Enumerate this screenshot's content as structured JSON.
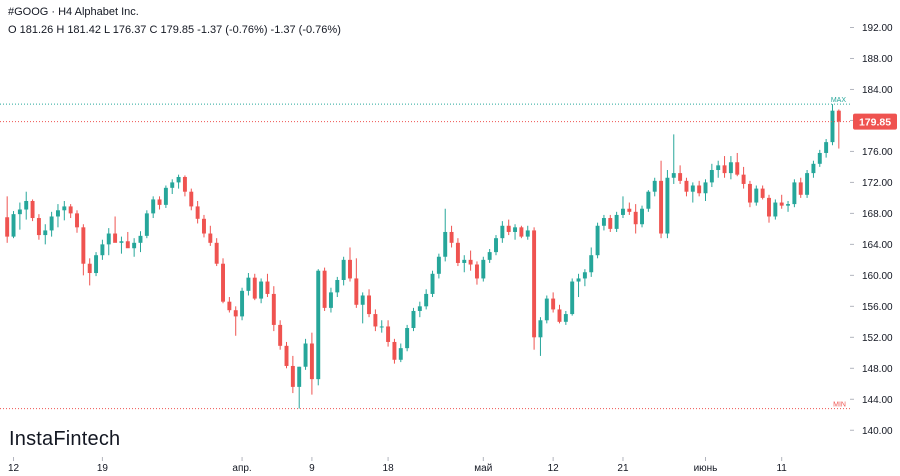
{
  "header": {
    "title": "#GOOG · H4 Alphabet Inc.",
    "ohlc": "O 181.26 H 181.42 L 176.37 C 179.85 -1.37 (-0.76%) -1.37 (-0.76%)"
  },
  "logo": "InstaFintech",
  "colors": {
    "up": "#26a69a",
    "down": "#ef5350",
    "price_line": "#ef5350",
    "max_line": "#26a69a",
    "min_line": "#ef5350",
    "axis_text": "#131722"
  },
  "chart_data": {
    "type": "candlestick",
    "title": "#GOOG · H4 Alphabet Inc.",
    "ylim": [
      139,
      194
    ],
    "y_ticks": [
      140,
      144,
      148,
      152,
      156,
      160,
      164,
      168,
      172,
      176,
      180,
      184,
      188,
      192
    ],
    "y_tick_labels": [
      "140.00",
      "144.00",
      "148.00",
      "152.00",
      "156.00",
      "160.00",
      "164.00",
      "168.00",
      "172.00",
      "176.00",
      "180.00",
      "184.00",
      "188.00",
      "192.00"
    ],
    "x_ticks": [
      {
        "label": "12",
        "index": 1
      },
      {
        "label": "19",
        "index": 15
      },
      {
        "label": "апр.",
        "index": 37
      },
      {
        "label": "9",
        "index": 48
      },
      {
        "label": "18",
        "index": 60
      },
      {
        "label": "май",
        "index": 75
      },
      {
        "label": "12",
        "index": 86
      },
      {
        "label": "21",
        "index": 97
      },
      {
        "label": "июнь",
        "index": 110
      },
      {
        "label": "11",
        "index": 122
      }
    ],
    "max": {
      "label": "MAX",
      "value": 182.1
    },
    "min": {
      "label": "MIN",
      "value": 142.8
    },
    "last_price": {
      "label": "179.85",
      "value": 179.85
    },
    "ohlc": [
      [
        167.5,
        170.2,
        164.2,
        165.0
      ],
      [
        165.0,
        168.3,
        164.8,
        167.9
      ],
      [
        167.9,
        169.4,
        165.9,
        168.5
      ],
      [
        168.5,
        170.8,
        167.2,
        169.6
      ],
      [
        169.6,
        169.8,
        167.0,
        167.4
      ],
      [
        167.4,
        167.9,
        164.6,
        165.2
      ],
      [
        165.2,
        166.6,
        164.0,
        165.8
      ],
      [
        165.8,
        168.2,
        165.0,
        167.6
      ],
      [
        167.6,
        169.2,
        166.2,
        168.4
      ],
      [
        168.4,
        169.6,
        167.1,
        168.9
      ],
      [
        168.9,
        169.2,
        167.4,
        168.0
      ],
      [
        168.0,
        168.4,
        165.5,
        166.2
      ],
      [
        166.2,
        166.6,
        160.0,
        161.5
      ],
      [
        161.5,
        162.2,
        158.7,
        160.3
      ],
      [
        160.3,
        163.0,
        159.9,
        162.6
      ],
      [
        162.6,
        164.6,
        162.0,
        164.0
      ],
      [
        164.0,
        166.1,
        162.6,
        165.4
      ],
      [
        165.4,
        167.6,
        164.6,
        164.2
      ],
      [
        164.2,
        165.0,
        162.8,
        164.4
      ],
      [
        164.4,
        165.6,
        163.8,
        163.5
      ],
      [
        163.5,
        164.8,
        162.4,
        164.2
      ],
      [
        164.2,
        165.7,
        163.0,
        165.1
      ],
      [
        165.1,
        168.4,
        164.8,
        168.0
      ],
      [
        168.0,
        170.2,
        167.4,
        169.8
      ],
      [
        169.8,
        170.2,
        168.5,
        169.1
      ],
      [
        169.1,
        171.6,
        168.7,
        171.3
      ],
      [
        171.3,
        172.4,
        170.5,
        172.0
      ],
      [
        172.0,
        173.0,
        171.2,
        172.7
      ],
      [
        172.7,
        172.9,
        170.2,
        170.8
      ],
      [
        170.8,
        171.2,
        168.4,
        168.9
      ],
      [
        168.9,
        169.6,
        166.7,
        167.3
      ],
      [
        167.3,
        167.8,
        164.9,
        165.4
      ],
      [
        165.4,
        166.4,
        163.8,
        164.2
      ],
      [
        164.2,
        164.8,
        161.2,
        161.5
      ],
      [
        161.5,
        162.2,
        156.4,
        156.6
      ],
      [
        156.6,
        157.2,
        155.2,
        155.5
      ],
      [
        155.5,
        156.0,
        152.2,
        154.7
      ],
      [
        154.7,
        158.4,
        154.2,
        158.0
      ],
      [
        158.0,
        160.3,
        157.4,
        159.7
      ],
      [
        159.7,
        160.2,
        156.8,
        157.0
      ],
      [
        157.0,
        159.6,
        156.4,
        159.2
      ],
      [
        159.2,
        160.2,
        157.2,
        157.6
      ],
      [
        157.6,
        158.6,
        152.8,
        153.6
      ],
      [
        153.6,
        154.2,
        150.4,
        150.9
      ],
      [
        150.9,
        151.4,
        148.0,
        148.3
      ],
      [
        148.3,
        149.6,
        144.8,
        145.6
      ],
      [
        145.6,
        148.2,
        142.8,
        148.2
      ],
      [
        148.2,
        151.8,
        147.8,
        151.2
      ],
      [
        151.2,
        152.6,
        144.6,
        146.6
      ],
      [
        146.6,
        160.8,
        145.8,
        160.6
      ],
      [
        160.6,
        161.0,
        155.4,
        155.8
      ],
      [
        155.8,
        158.4,
        155.2,
        157.8
      ],
      [
        157.8,
        159.8,
        157.2,
        159.4
      ],
      [
        159.4,
        162.4,
        158.7,
        162.0
      ],
      [
        162.0,
        163.6,
        159.2,
        159.6
      ],
      [
        159.6,
        162.2,
        155.8,
        156.2
      ],
      [
        156.2,
        157.8,
        153.8,
        157.4
      ],
      [
        157.4,
        158.2,
        154.6,
        155.0
      ],
      [
        155.0,
        155.6,
        152.8,
        153.4
      ],
      [
        153.4,
        154.2,
        152.6,
        153.4
      ],
      [
        153.4,
        154.2,
        150.8,
        151.4
      ],
      [
        151.4,
        151.8,
        148.6,
        149.1
      ],
      [
        149.1,
        151.2,
        148.8,
        150.6
      ],
      [
        150.6,
        153.6,
        150.2,
        153.2
      ],
      [
        153.2,
        155.8,
        152.8,
        155.4
      ],
      [
        155.4,
        156.6,
        154.6,
        156.0
      ],
      [
        156.0,
        158.2,
        155.6,
        157.6
      ],
      [
        157.6,
        160.6,
        157.2,
        160.2
      ],
      [
        160.2,
        162.8,
        159.6,
        162.4
      ],
      [
        162.4,
        168.6,
        161.8,
        165.6
      ],
      [
        165.6,
        166.4,
        163.6,
        164.2
      ],
      [
        164.2,
        164.8,
        161.2,
        161.6
      ],
      [
        161.6,
        162.6,
        160.4,
        162.0
      ],
      [
        162.0,
        163.2,
        160.6,
        161.4
      ],
      [
        161.4,
        161.8,
        158.8,
        159.6
      ],
      [
        159.6,
        162.4,
        159.2,
        162.0
      ],
      [
        162.0,
        163.4,
        161.6,
        163.0
      ],
      [
        163.0,
        165.2,
        162.6,
        164.8
      ],
      [
        164.8,
        167.0,
        164.2,
        166.4
      ],
      [
        166.4,
        167.2,
        165.2,
        165.6
      ],
      [
        165.6,
        166.6,
        164.6,
        166.2
      ],
      [
        166.2,
        166.4,
        164.8,
        165.0
      ],
      [
        165.0,
        166.4,
        164.6,
        165.8
      ],
      [
        165.8,
        166.2,
        150.4,
        152.0
      ],
      [
        152.0,
        154.6,
        149.6,
        154.2
      ],
      [
        154.2,
        157.4,
        153.8,
        157.0
      ],
      [
        157.0,
        157.8,
        155.2,
        155.6
      ],
      [
        155.6,
        156.2,
        153.8,
        154.0
      ],
      [
        154.0,
        155.4,
        153.6,
        155.0
      ],
      [
        155.0,
        159.6,
        154.8,
        159.2
      ],
      [
        159.2,
        160.2,
        157.2,
        159.6
      ],
      [
        159.6,
        160.8,
        158.6,
        160.4
      ],
      [
        160.4,
        163.6,
        159.8,
        162.6
      ],
      [
        162.6,
        166.8,
        162.2,
        166.4
      ],
      [
        166.4,
        167.8,
        165.8,
        167.4
      ],
      [
        167.4,
        167.8,
        165.6,
        166.0
      ],
      [
        166.0,
        168.2,
        165.6,
        167.8
      ],
      [
        167.8,
        170.2,
        167.4,
        168.6
      ],
      [
        168.6,
        169.4,
        167.8,
        168.2
      ],
      [
        168.2,
        169.2,
        165.4,
        166.6
      ],
      [
        166.6,
        169.0,
        166.2,
        168.6
      ],
      [
        168.6,
        171.0,
        168.2,
        170.8
      ],
      [
        170.8,
        172.6,
        170.2,
        172.2
      ],
      [
        172.2,
        174.8,
        164.8,
        165.4
      ],
      [
        165.4,
        173.6,
        164.8,
        172.6
      ],
      [
        172.6,
        178.2,
        171.8,
        173.2
      ],
      [
        173.2,
        174.2,
        171.8,
        172.2
      ],
      [
        172.2,
        172.6,
        170.2,
        170.8
      ],
      [
        170.8,
        172.0,
        169.4,
        171.6
      ],
      [
        171.6,
        172.2,
        170.2,
        170.6
      ],
      [
        170.6,
        172.4,
        169.6,
        172.0
      ],
      [
        172.0,
        174.4,
        171.4,
        173.6
      ],
      [
        173.6,
        174.8,
        172.6,
        174.2
      ],
      [
        174.2,
        175.4,
        172.6,
        173.2
      ],
      [
        173.2,
        175.4,
        172.4,
        174.6
      ],
      [
        174.6,
        175.8,
        172.8,
        173.0
      ],
      [
        173.0,
        174.0,
        171.2,
        171.8
      ],
      [
        171.8,
        172.2,
        168.8,
        169.4
      ],
      [
        169.4,
        171.6,
        169.0,
        171.2
      ],
      [
        171.2,
        171.6,
        169.8,
        170.0
      ],
      [
        170.0,
        170.4,
        166.8,
        167.6
      ],
      [
        167.6,
        169.8,
        167.2,
        169.4
      ],
      [
        169.4,
        170.4,
        168.6,
        169.0
      ],
      [
        169.0,
        169.6,
        168.2,
        169.2
      ],
      [
        169.2,
        172.4,
        168.8,
        172.0
      ],
      [
        172.0,
        172.6,
        170.0,
        170.4
      ],
      [
        170.4,
        173.6,
        170.0,
        173.2
      ],
      [
        173.2,
        174.8,
        172.6,
        174.4
      ],
      [
        174.4,
        176.2,
        174.0,
        175.8
      ],
      [
        175.8,
        177.6,
        175.2,
        177.2
      ],
      [
        177.2,
        182.1,
        176.8,
        181.26
      ],
      [
        181.26,
        181.42,
        176.37,
        179.85
      ]
    ]
  }
}
